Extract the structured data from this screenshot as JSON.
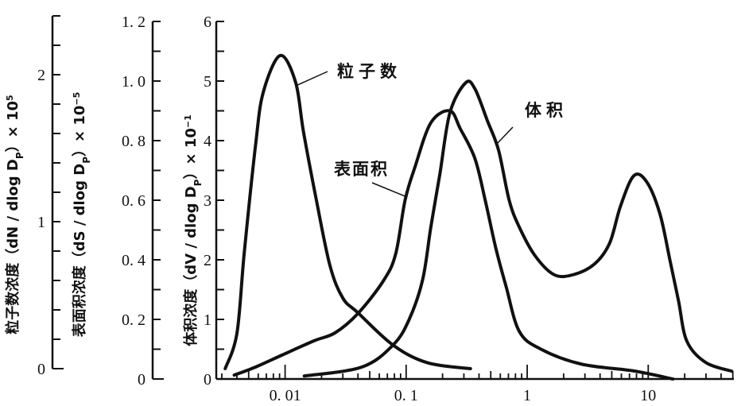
{
  "chart_data": {
    "type": "line",
    "x_scale": "log",
    "xlim": [
      0.0027,
      51
    ],
    "x_ticks": [
      {
        "value": 0.01,
        "label": "0. 01"
      },
      {
        "value": 0.1,
        "label": "0. 1"
      },
      {
        "value": 1,
        "label": "1"
      },
      {
        "value": 10,
        "label": "10"
      }
    ],
    "grid": false,
    "y_axes": [
      {
        "id": "number",
        "title": "粒子数浓度（dN / dlog D",
        "title_sub": "P",
        "title_tail": "）× 10",
        "title_exp": "5",
        "ylim": [
          0,
          2.4
        ],
        "ticks": [
          {
            "value": 0,
            "label": "0"
          },
          {
            "value": 1,
            "label": "1"
          },
          {
            "value": 2,
            "label": "2"
          }
        ],
        "minor_step": 0.2
      },
      {
        "id": "surface",
        "title": "表面积浓度（dS / dlog D",
        "title_sub": "P",
        "title_tail": "）× 10",
        "title_exp": "−5",
        "ylim": [
          0,
          1.2
        ],
        "ticks": [
          {
            "value": 0,
            "label": "0"
          },
          {
            "value": 0.2,
            "label": "0. 2"
          },
          {
            "value": 0.4,
            "label": "0. 4"
          },
          {
            "value": 0.6,
            "label": "0. 6"
          },
          {
            "value": 0.8,
            "label": "0. 8"
          },
          {
            "value": 1.0,
            "label": "1. 0"
          },
          {
            "value": 1.2,
            "label": "1. 2"
          }
        ],
        "minor_step": 0.1
      },
      {
        "id": "volume",
        "title": "体积浓度（dV / dlog D",
        "title_sub": "P",
        "title_tail": "）× 10",
        "title_exp": "−1",
        "ylim": [
          0,
          6
        ],
        "ticks": [
          {
            "value": 0,
            "label": "0"
          },
          {
            "value": 1,
            "label": "1"
          },
          {
            "value": 2,
            "label": "2"
          },
          {
            "value": 3,
            "label": "3"
          },
          {
            "value": 4,
            "label": "4"
          },
          {
            "value": 5,
            "label": "5"
          },
          {
            "value": 6,
            "label": "6"
          }
        ],
        "minor_step": 0.5
      }
    ],
    "series": [
      {
        "name": "粒子数",
        "axis": "number",
        "x": [
          0.0032,
          0.004,
          0.0046,
          0.0057,
          0.0066,
          0.0091,
          0.0122,
          0.0142,
          0.0181,
          0.0235,
          0.03,
          0.04,
          0.078,
          0.15,
          0.34
        ],
        "y": [
          0.0,
          0.24,
          0.79,
          1.52,
          1.88,
          2.13,
          1.95,
          1.61,
          1.15,
          0.7,
          0.48,
          0.38,
          0.16,
          0.04,
          0.0
        ]
      },
      {
        "name": "表面积",
        "axis": "surface",
        "x": [
          0.0038,
          0.0057,
          0.0094,
          0.0173,
          0.0259,
          0.04,
          0.065,
          0.082,
          0.098,
          0.118,
          0.16,
          0.23,
          0.28,
          0.37,
          0.45,
          0.55,
          0.67,
          0.86,
          1.3,
          2.8,
          7.6,
          16
        ],
        "y": [
          0.013,
          0.04,
          0.08,
          0.128,
          0.155,
          0.22,
          0.33,
          0.42,
          0.6,
          0.71,
          0.86,
          0.9,
          0.84,
          0.74,
          0.6,
          0.44,
          0.31,
          0.16,
          0.1,
          0.05,
          0.027,
          0.0
        ]
      },
      {
        "name": "体积",
        "axis": "volume",
        "x": [
          0.0144,
          0.043,
          0.078,
          0.106,
          0.137,
          0.16,
          0.19,
          0.23,
          0.31,
          0.37,
          0.47,
          0.58,
          0.71,
          0.86,
          1.16,
          1.67,
          2.4,
          3.6,
          4.8,
          5.9,
          7.6,
          9.7,
          12.5,
          15.2,
          17.8,
          20.8,
          29.7,
          49
        ],
        "y": [
          0.05,
          0.2,
          0.57,
          1.0,
          1.67,
          2.55,
          3.44,
          4.47,
          4.97,
          4.87,
          4.33,
          3.84,
          3.0,
          2.55,
          2.07,
          1.75,
          1.75,
          1.93,
          2.28,
          2.9,
          3.41,
          3.31,
          2.77,
          1.97,
          1.31,
          0.64,
          0.28,
          0.13
        ]
      }
    ],
    "annotations": [
      {
        "text": "粒子数",
        "series": "粒子数"
      },
      {
        "text": "表面积",
        "series": "表面积"
      },
      {
        "text": "体积",
        "series": "体积"
      }
    ]
  }
}
